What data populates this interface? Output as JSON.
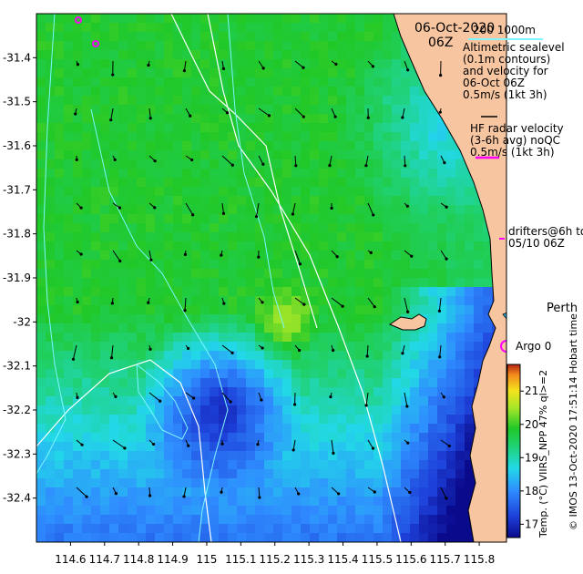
{
  "map": {
    "title": {
      "date": "06-Oct-2020",
      "time": "06Z"
    },
    "isobath_label": "200  1000m",
    "legend_altimetry": [
      "Altimetric sealevel",
      "(0.1m contours)",
      "and velocity for",
      "06-Oct 06Z",
      "0.5m/s (1kt 3h)"
    ],
    "legend_hf": [
      "HF radar velocity",
      "(3-6h avg) noQC",
      "0.5m/s (1kt 3h)"
    ],
    "legend_drifters": [
      "drifters@6h to",
      "05/10 06Z"
    ],
    "place_label": "Perth",
    "argo_label": "Argo 0",
    "colorbar_label": "Temp. (°C) VIIRS_NPP 47% ql>=2",
    "colorbar_ticks": [
      "21",
      "20",
      "19",
      "18",
      "17"
    ],
    "credit": "© IMOS 13-Oct-2020 17:51:14 Hobart time",
    "y_ticks": [
      "-31.4",
      "-31.5",
      "-31.6",
      "-31.7",
      "-31.8",
      "-31.9",
      "-32",
      "-32.1",
      "-32.2",
      "-32.3",
      "-32.4"
    ],
    "x_ticks": [
      "114.6",
      "114.7",
      "114.8",
      "114.9",
      "115",
      "115.1",
      "115.2",
      "115.3",
      "115.4",
      "115.5",
      "115.6",
      "115.7",
      "115.8"
    ],
    "extent": {
      "lon_min": 114.5,
      "lon_max": 115.88,
      "lat_min": -32.5,
      "lat_max": -31.3
    },
    "temp_range": [
      16.6,
      21.8
    ],
    "colors": {
      "land": "#f7c59f",
      "argo": "#ff00ff",
      "drifter": "#ff00ff",
      "contour": "#7ff6ff",
      "isobath": "#ffffff"
    }
  }
}
